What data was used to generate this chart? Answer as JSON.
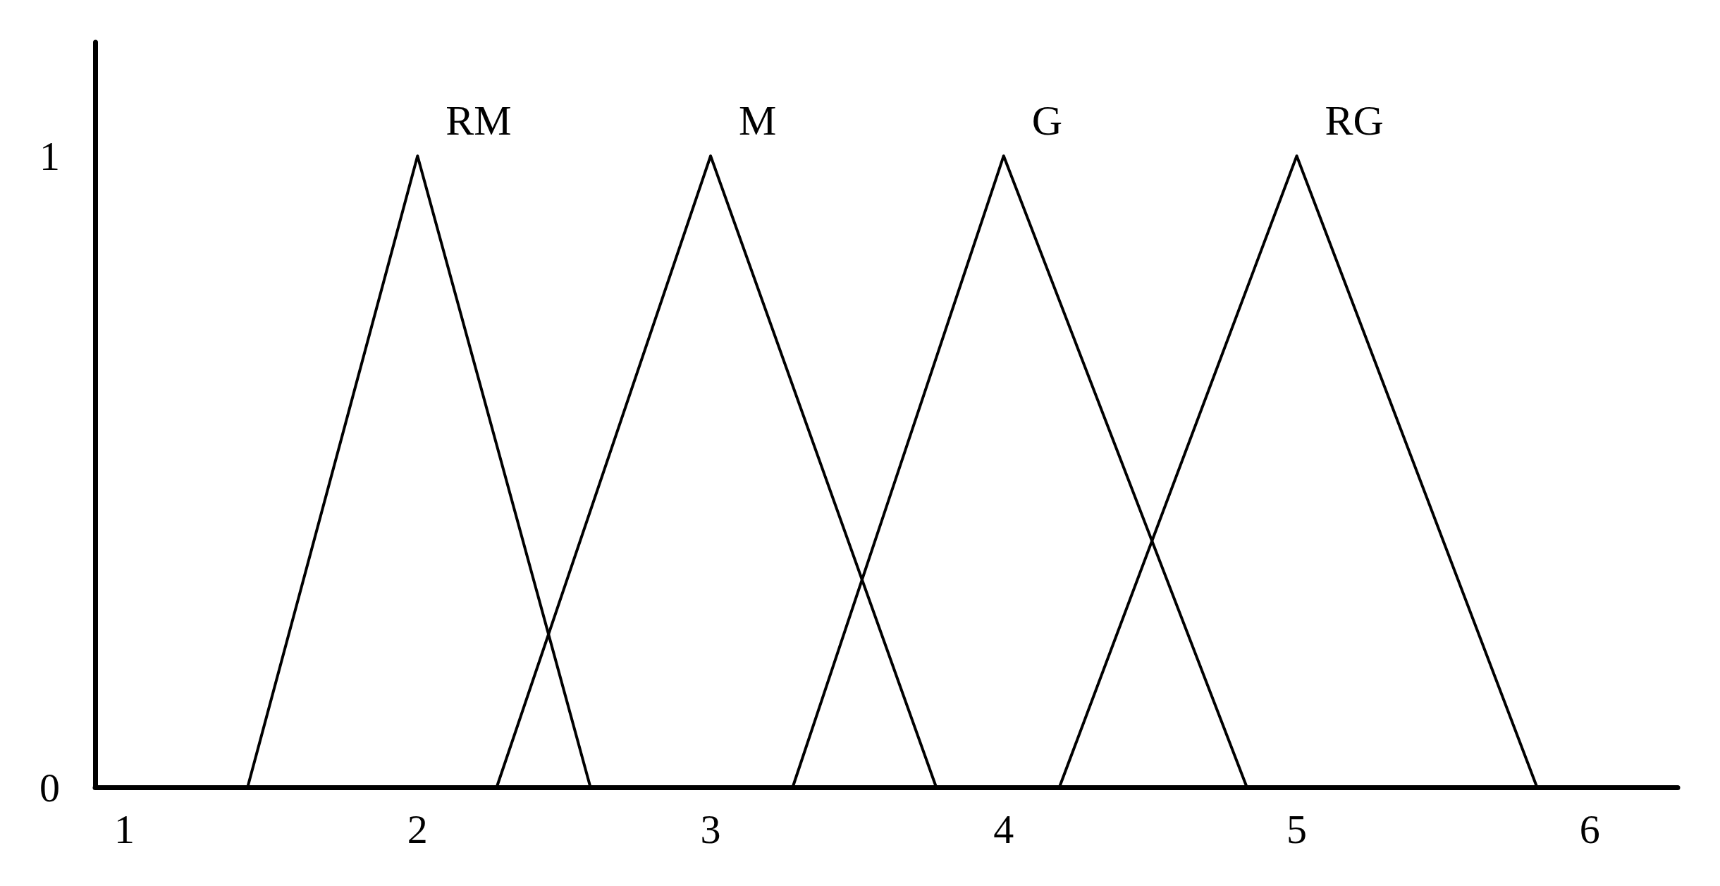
{
  "chart_data": {
    "type": "line",
    "series": [
      {
        "name": "RM",
        "color": "#000000",
        "x": [
          1.42,
          2,
          2.59
        ],
        "values": [
          0,
          1,
          0
        ]
      },
      {
        "name": "M",
        "color": "#000000",
        "x": [
          2.27,
          3,
          3.77
        ],
        "values": [
          0,
          1,
          0
        ]
      },
      {
        "name": "G",
        "color": "#000000",
        "x": [
          3.28,
          4,
          4.83
        ],
        "values": [
          0,
          1,
          0
        ]
      },
      {
        "name": "RG",
        "color": "#000000",
        "x": [
          4.19,
          5,
          5.82
        ],
        "values": [
          0,
          1,
          0
        ]
      }
    ],
    "xlim": [
      0.9,
      6.3
    ],
    "xticks": [
      1,
      2,
      3,
      4,
      5,
      6
    ],
    "ylim": [
      0,
      1.18
    ],
    "yticks": [
      0,
      1
    ],
    "grid": false,
    "legend": false,
    "marker": "none",
    "line_style": "solid"
  }
}
